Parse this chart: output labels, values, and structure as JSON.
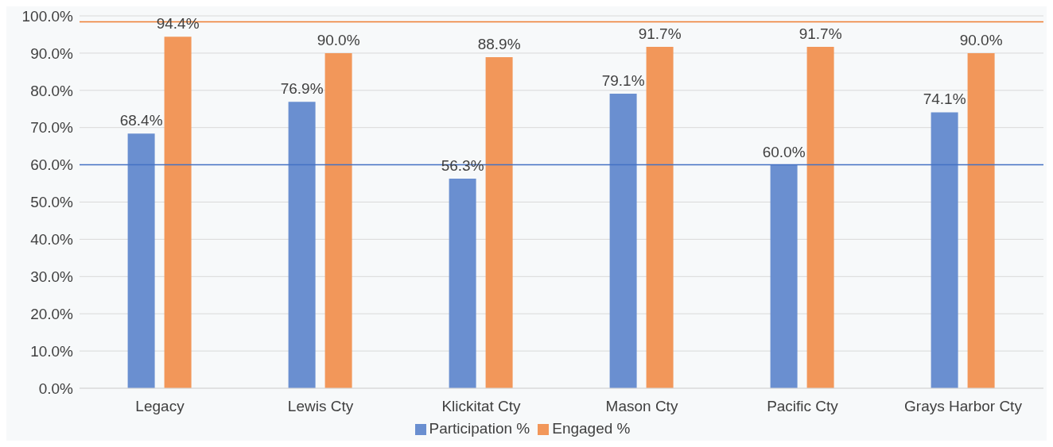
{
  "chart_data": {
    "type": "bar",
    "categories": [
      "Legacy",
      "Lewis Cty",
      "Klickitat Cty",
      "Mason Cty",
      "Pacific Cty",
      "Grays Harbor Cty"
    ],
    "series": [
      {
        "name": "Participation %",
        "color": "#6a8fd0",
        "values": [
          68.4,
          76.9,
          56.3,
          79.1,
          60.0,
          74.1
        ],
        "value_labels": [
          "68.4%",
          "76.9%",
          "56.3%",
          "79.1%",
          "60.0%",
          "74.1%"
        ]
      },
      {
        "name": "Engaged %",
        "color": "#f2975a",
        "values": [
          94.4,
          90.0,
          88.9,
          91.7,
          91.7,
          90.0
        ],
        "value_labels": [
          "94.4%",
          "90.0%",
          "88.9%",
          "91.7%",
          "91.7%",
          "90.0%"
        ]
      }
    ],
    "ylim": [
      0,
      100
    ],
    "yticks": [
      {
        "value": 0,
        "label": "0.0%"
      },
      {
        "value": 10,
        "label": "10.0%"
      },
      {
        "value": 20,
        "label": "20.0%"
      },
      {
        "value": 30,
        "label": "30.0%"
      },
      {
        "value": 40,
        "label": "40.0%"
      },
      {
        "value": 50,
        "label": "50.0%"
      },
      {
        "value": 60,
        "label": "60.0%"
      },
      {
        "value": 70,
        "label": "70.0%"
      },
      {
        "value": 80,
        "label": "80.0%"
      },
      {
        "value": 90,
        "label": "90.0%"
      },
      {
        "value": 100,
        "label": "100.0%"
      }
    ],
    "ref_lines": [
      {
        "axis": "y",
        "value": 60,
        "color": "#4472c4"
      },
      {
        "axis": "y",
        "value": 98.4,
        "color": "#ed7d31"
      }
    ],
    "grid": "y",
    "legend": "bottom"
  }
}
